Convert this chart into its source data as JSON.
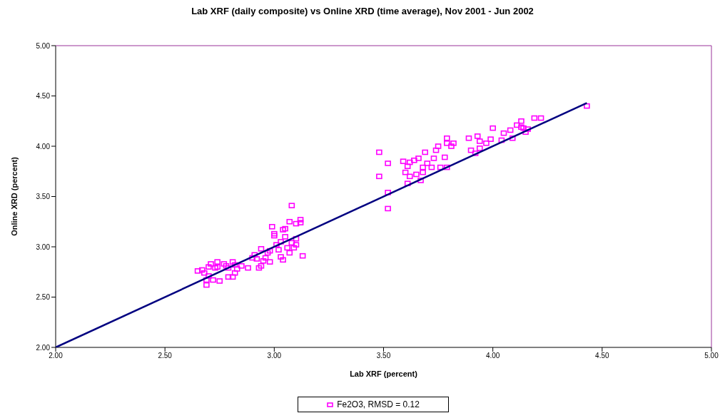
{
  "chart_data": {
    "type": "scatter",
    "title": "Lab XRF (daily composite) vs Online XRD (time average), Nov 2001 - Jun 2002",
    "xlabel": "Lab XRF (percent)",
    "ylabel": "Online XRD (percent)",
    "xlim": [
      2,
      5
    ],
    "xticks": [
      {
        "value": 2,
        "label": "2.00"
      },
      {
        "value": 2.5,
        "label": "2.50"
      },
      {
        "value": 3,
        "label": "3.00"
      },
      {
        "value": 3.5,
        "label": "3.50"
      },
      {
        "value": 4,
        "label": "4.00"
      },
      {
        "value": 4.5,
        "label": "4.50"
      },
      {
        "value": 5,
        "label": "5.00"
      }
    ],
    "ylim": [
      2,
      5
    ],
    "yticks": [
      {
        "value": 2,
        "label": "2.00"
      },
      {
        "value": 2.5,
        "label": "2.50"
      },
      {
        "value": 3,
        "label": "3.00"
      },
      {
        "value": 3.5,
        "label": "3.50"
      },
      {
        "value": 4,
        "label": "4.00"
      },
      {
        "value": 4.5,
        "label": "4.50"
      },
      {
        "value": 5,
        "label": "5.00"
      }
    ],
    "grid": false,
    "legend": "bottom",
    "marker": "square",
    "series": [
      {
        "name": "Fe2O3, RMSD = 0.12",
        "color": "#ff00ff",
        "x": [
          2.65,
          2.67,
          2.68,
          2.69,
          2.69,
          2.7,
          2.7,
          2.71,
          2.73,
          2.74,
          2.74,
          2.72,
          2.75,
          2.77,
          2.78,
          2.79,
          2.81,
          2.82,
          2.79,
          2.81,
          2.82,
          2.83,
          2.85,
          2.88,
          2.9,
          2.91,
          2.92,
          2.93,
          2.94,
          2.94,
          2.95,
          2.96,
          2.97,
          2.98,
          2.98,
          2.99,
          3.0,
          3.0,
          3.01,
          3.02,
          3.03,
          3.03,
          3.04,
          3.04,
          3.05,
          3.05,
          3.06,
          3.07,
          3.07,
          3.08,
          3.08,
          3.09,
          3.1,
          3.1,
          3.1,
          3.12,
          3.12,
          3.13,
          3.48,
          3.48,
          3.52,
          3.52,
          3.52,
          3.59,
          3.6,
          3.61,
          3.62,
          3.62,
          3.61,
          3.64,
          3.65,
          3.66,
          3.67,
          3.68,
          3.68,
          3.69,
          3.7,
          3.72,
          3.73,
          3.74,
          3.75,
          3.76,
          3.78,
          3.79,
          3.79,
          3.79,
          3.81,
          3.82,
          3.89,
          3.9,
          3.92,
          3.93,
          3.94,
          3.94,
          3.97,
          3.99,
          4.0,
          4.04,
          4.05,
          4.08,
          4.09,
          4.11,
          4.13,
          4.13,
          4.14,
          4.15,
          4.16,
          4.19,
          4.22,
          4.43
        ],
        "values": [
          2.76,
          2.77,
          2.74,
          2.62,
          2.67,
          2.71,
          2.8,
          2.83,
          2.79,
          2.85,
          2.8,
          2.67,
          2.66,
          2.83,
          2.81,
          2.79,
          2.85,
          2.82,
          2.7,
          2.7,
          2.74,
          2.78,
          2.81,
          2.79,
          2.89,
          2.92,
          2.88,
          2.79,
          2.81,
          2.98,
          2.86,
          2.89,
          2.94,
          2.85,
          2.96,
          3.2,
          3.13,
          3.11,
          3.02,
          2.97,
          2.9,
          3.05,
          3.17,
          2.87,
          3.1,
          3.18,
          2.99,
          3.25,
          2.94,
          3.41,
          3.04,
          2.99,
          3.02,
          3.08,
          3.23,
          3.24,
          3.27,
          2.91,
          3.94,
          3.7,
          3.83,
          3.38,
          3.54,
          3.85,
          3.74,
          3.8,
          3.84,
          3.7,
          3.63,
          3.86,
          3.72,
          3.88,
          3.66,
          3.74,
          3.79,
          3.94,
          3.83,
          3.79,
          3.88,
          3.96,
          4.0,
          3.79,
          3.89,
          4.08,
          4.03,
          3.79,
          4.0,
          4.03,
          4.08,
          3.96,
          3.93,
          4.1,
          4.05,
          3.98,
          4.03,
          4.07,
          4.18,
          4.06,
          4.13,
          4.16,
          4.08,
          4.21,
          4.25,
          4.19,
          4.18,
          4.14,
          4.17,
          4.28,
          4.28,
          4.4
        ]
      },
      {
        "type": "line",
        "color": "#000080",
        "marker": "none",
        "x": [
          2,
          4.43
        ],
        "values": [
          2,
          4.43
        ]
      }
    ]
  }
}
